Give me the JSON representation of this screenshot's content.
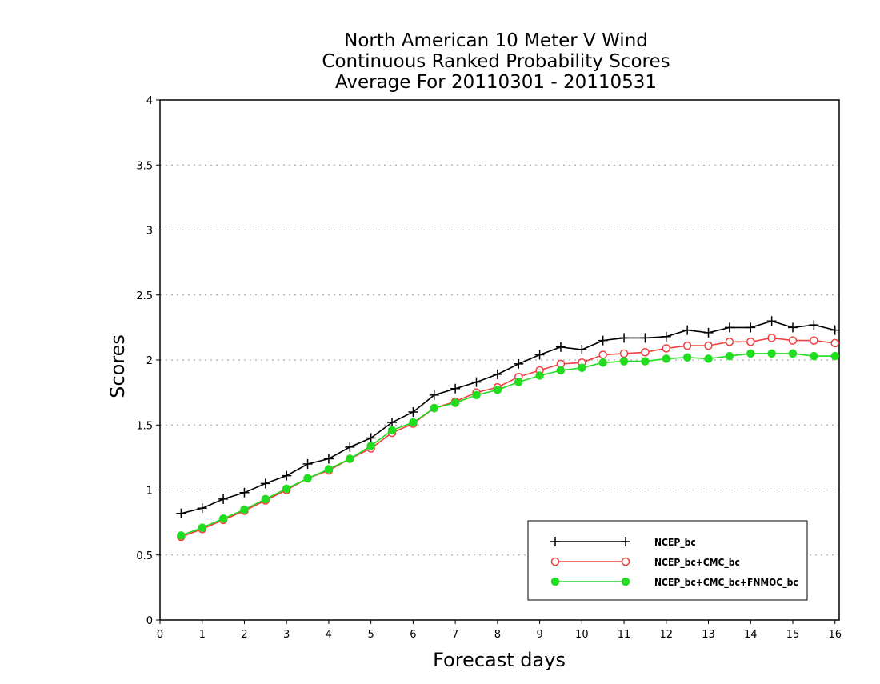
{
  "chart_data": {
    "type": "line",
    "title_lines": [
      "North American 10 Meter V Wind",
      "Continuous Ranked Probability Scores",
      "Average For 20110301 - 20110531"
    ],
    "xlabel": "Forecast days",
    "ylabel": "Scores",
    "xlim": [
      0,
      16.1
    ],
    "ylim": [
      0,
      4
    ],
    "x_ticks": [
      "0",
      "1",
      "2",
      "3",
      "4",
      "5",
      "6",
      "7",
      "8",
      "9",
      "10",
      "11",
      "12",
      "13",
      "14",
      "15",
      "16"
    ],
    "y_ticks": [
      "0",
      "0.5",
      "1",
      "1.5",
      "2",
      "2.5",
      "3",
      "3.5",
      "4"
    ],
    "grid": "horizontal dotted",
    "legend_position": "bottom-right",
    "x": [
      0.5,
      1,
      1.5,
      2,
      2.5,
      3,
      3.5,
      4,
      4.5,
      5,
      5.5,
      6,
      6.5,
      7,
      7.5,
      8,
      8.5,
      9,
      9.5,
      10,
      10.5,
      11,
      11.5,
      12,
      12.5,
      13,
      13.5,
      14,
      14.5,
      15,
      15.5,
      16
    ],
    "series": [
      {
        "name": "NCEP_bc",
        "color": "#000000",
        "marker": "plus",
        "values": [
          0.82,
          0.86,
          0.93,
          0.98,
          1.05,
          1.11,
          1.2,
          1.24,
          1.33,
          1.4,
          1.52,
          1.6,
          1.73,
          1.78,
          1.83,
          1.89,
          1.97,
          2.04,
          2.1,
          2.08,
          2.15,
          2.17,
          2.17,
          2.18,
          2.23,
          2.21,
          2.25,
          2.25,
          2.3,
          2.25,
          2.27,
          2.23
        ]
      },
      {
        "name": "NCEP_bc+CMC_bc",
        "color": "#f04040",
        "marker": "open-circle",
        "values": [
          0.64,
          0.7,
          0.77,
          0.84,
          0.92,
          1.0,
          1.09,
          1.15,
          1.24,
          1.32,
          1.44,
          1.51,
          1.63,
          1.68,
          1.75,
          1.79,
          1.87,
          1.92,
          1.97,
          1.98,
          2.04,
          2.05,
          2.06,
          2.09,
          2.11,
          2.11,
          2.14,
          2.14,
          2.17,
          2.15,
          2.15,
          2.13
        ]
      },
      {
        "name": "NCEP_bc+CMC_bc+FNMOC_bc",
        "color": "#20dd20",
        "marker": "filled-circle",
        "values": [
          0.65,
          0.71,
          0.78,
          0.85,
          0.93,
          1.01,
          1.09,
          1.16,
          1.24,
          1.34,
          1.46,
          1.52,
          1.63,
          1.67,
          1.73,
          1.77,
          1.83,
          1.88,
          1.92,
          1.94,
          1.98,
          1.99,
          1.99,
          2.01,
          2.02,
          2.01,
          2.03,
          2.05,
          2.05,
          2.05,
          2.03,
          2.03
        ]
      }
    ]
  }
}
